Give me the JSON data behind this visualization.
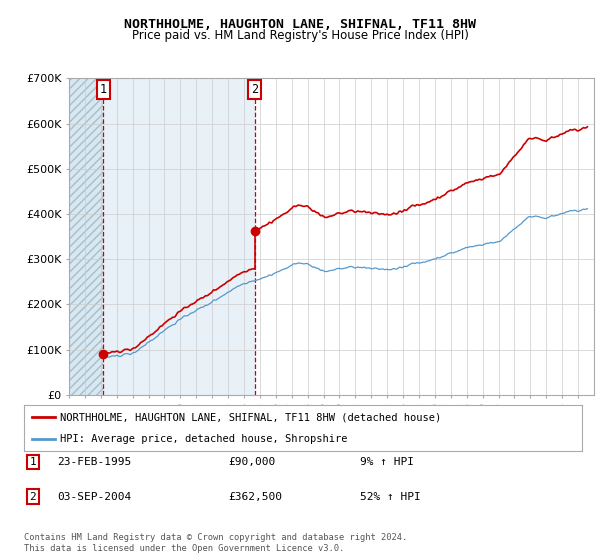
{
  "title": "NORTHHOLME, HAUGHTON LANE, SHIFNAL, TF11 8HW",
  "subtitle": "Price paid vs. HM Land Registry's House Price Index (HPI)",
  "ylim": [
    0,
    700000
  ],
  "yticks": [
    0,
    100000,
    200000,
    300000,
    400000,
    500000,
    600000,
    700000
  ],
  "ytick_labels": [
    "£0",
    "£100K",
    "£200K",
    "£300K",
    "£400K",
    "£500K",
    "£600K",
    "£700K"
  ],
  "purchase1_date_num": 1995.15,
  "purchase1_price": 90000,
  "purchase2_date_num": 2004.67,
  "purchase2_price": 362500,
  "legend_line1": "NORTHHOLME, HAUGHTON LANE, SHIFNAL, TF11 8HW (detached house)",
  "legend_line2": "HPI: Average price, detached house, Shropshire",
  "table_row1_date": "23-FEB-1995",
  "table_row1_price": "£90,000",
  "table_row1_hpi": "9% ↑ HPI",
  "table_row2_date": "03-SEP-2004",
  "table_row2_price": "£362,500",
  "table_row2_hpi": "52% ↑ HPI",
  "footnote": "Contains HM Land Registry data © Crown copyright and database right 2024.\nThis data is licensed under the Open Government Licence v3.0.",
  "red_line_color": "#cc0000",
  "blue_line_color": "#5599cc",
  "hatch_bg_color": "#d8e8f0",
  "mid_bg_color": "#e8f0f8"
}
